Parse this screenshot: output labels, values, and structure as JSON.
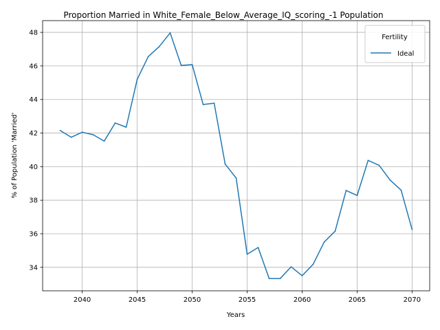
{
  "chart_data": {
    "type": "line",
    "title": "Proportion Married in White_Female_Below_Average_IQ_scoring_-1 Population",
    "xlabel": "Years",
    "ylabel": "% of Population 'Married'",
    "xlim": [
      2036.4,
      2071.6
    ],
    "ylim": [
      32.6,
      48.7
    ],
    "xticks": [
      2040,
      2045,
      2050,
      2055,
      2060,
      2065,
      2070
    ],
    "yticks": [
      34,
      36,
      38,
      40,
      42,
      44,
      46,
      48
    ],
    "grid": true,
    "legend": {
      "title": "Fertility",
      "position": "top-right"
    },
    "series": [
      {
        "name": "Ideal",
        "color": "#1f77b4",
        "x": [
          2038,
          2039,
          2040,
          2041,
          2042,
          2043,
          2044,
          2045,
          2046,
          2047,
          2048,
          2049,
          2050,
          2051,
          2052,
          2053,
          2054,
          2055,
          2056,
          2057,
          2058,
          2059,
          2060,
          2061,
          2062,
          2063,
          2064,
          2065,
          2066,
          2067,
          2068,
          2069,
          2070
        ],
        "values": [
          42.15,
          41.75,
          42.05,
          41.9,
          41.52,
          42.6,
          42.35,
          45.2,
          46.55,
          47.15,
          47.97,
          46.03,
          46.08,
          43.7,
          43.78,
          40.15,
          39.32,
          34.78,
          35.18,
          33.33,
          33.33,
          34.03,
          33.5,
          34.18,
          35.5,
          36.15,
          38.58,
          38.28,
          40.37,
          40.08,
          39.2,
          38.6,
          36.25
        ]
      }
    ]
  }
}
